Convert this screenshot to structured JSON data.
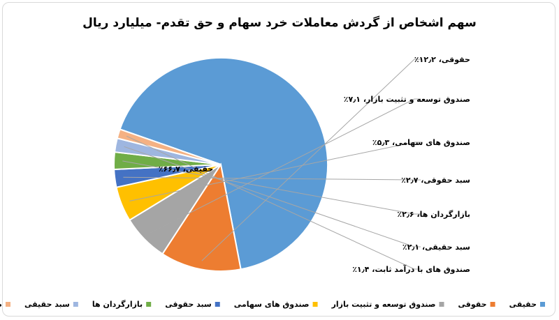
{
  "chart_data": {
    "type": "pie",
    "title": "سهم اشخاص از گردش معاملات خرد سهام و حق تقدم- میلیارد ریال",
    "legend_position": "bottom",
    "slices": [
      {
        "name": "حقیقی",
        "label": "حقیقی، ۶۶٫۷٪",
        "value": 66.7,
        "color": "#5b9bd5"
      },
      {
        "name": "حقوقی",
        "label": "حقوقی، ۱۲٫۲٪",
        "value": 12.2,
        "color": "#ed7d31"
      },
      {
        "name": "صندوق توسعه و تثبیت بازار",
        "label": "صندوق توسعه و تثبیت بازار، ۷٫۱٪",
        "value": 7.1,
        "color": "#a5a5a5"
      },
      {
        "name": "صندوق های سهامی",
        "label": "صندوق های سهامی، ۵٫۳٪",
        "value": 5.3,
        "color": "#ffc000"
      },
      {
        "name": "سبد حقوقی",
        "label": "سبد حقوقی، ۲٫۷٪",
        "value": 2.7,
        "color": "#4472c4"
      },
      {
        "name": "بازارگردان ها",
        "label": "بازارگردان ها، ۲٫۶٪",
        "value": 2.6,
        "color": "#70ad47"
      },
      {
        "name": "سبد حقیقی",
        "label": "سبد حقیقی، ۲٫۱٪",
        "value": 2.1,
        "color": "#9eb6e0"
      },
      {
        "name": "صندوق های با درآمد ثابت",
        "label": "صندوق های با درآمد ثابت، ۱٫۴٪",
        "value": 1.4,
        "color": "#f4b183"
      }
    ]
  }
}
